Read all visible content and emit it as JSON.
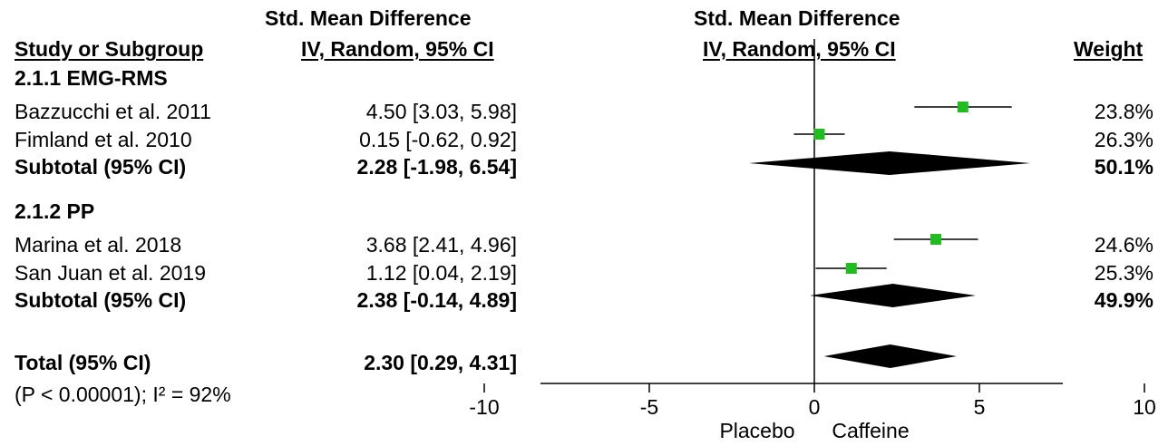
{
  "header": {
    "col_study": "Study or Subgroup",
    "col_effect_line1": "Std. Mean Difference",
    "col_effect_line2": "IV, Random, 95% CI",
    "plot_line1": "Std. Mean Difference",
    "plot_line2": "IV, Random, 95% CI",
    "col_weight": "Weight"
  },
  "subgroups": [
    {
      "title": "2.1.1 EMG-RMS",
      "studies": [
        {
          "name": "Bazzucchi et al. 2011",
          "ci_text": "4.50 [3.03, 5.98]",
          "weight": "23.8%"
        },
        {
          "name": "Fimland et al. 2010",
          "ci_text": "0.15 [-0.62, 0.92]",
          "weight": "26.3%"
        }
      ],
      "subtotal": {
        "label": "Subtotal (95% CI)",
        "ci_text": "2.28 [-1.98, 6.54]",
        "weight": "50.1%"
      }
    },
    {
      "title": "2.1.2 PP",
      "studies": [
        {
          "name": "Marina et al. 2018",
          "ci_text": "3.68 [2.41, 4.96]",
          "weight": "24.6%"
        },
        {
          "name": "San Juan et al. 2019",
          "ci_text": "1.12 [0.04, 2.19]",
          "weight": "25.3%"
        }
      ],
      "subtotal": {
        "label": "Subtotal (95% CI)",
        "ci_text": "2.38 [-0.14, 4.89]",
        "weight": "49.9%"
      }
    }
  ],
  "total": {
    "label": "Total (95% CI)",
    "ci_text": "2.30 [0.29, 4.31]",
    "heterogeneity": "(P < 0.00001); I² = 92%"
  },
  "axis": {
    "left_label": "Placebo",
    "right_label": "Caffeine"
  },
  "chart_data": {
    "type": "forest",
    "x_ticks": [
      -10,
      -5,
      0,
      5,
      10
    ],
    "xlim": [
      -10,
      10
    ],
    "marker_color": "#22bb22",
    "diamond_color": "#000000",
    "studies": [
      {
        "name": "Bazzucchi et al. 2011",
        "est": 4.5,
        "lo": 3.03,
        "hi": 5.98
      },
      {
        "name": "Fimland et al. 2010",
        "est": 0.15,
        "lo": -0.62,
        "hi": 0.92
      },
      {
        "name": "Marina et al. 2018",
        "est": 3.68,
        "lo": 2.41,
        "hi": 4.96
      },
      {
        "name": "San Juan et al. 2019",
        "est": 1.12,
        "lo": 0.04,
        "hi": 2.19
      }
    ],
    "pooled": [
      {
        "label": "Subtotal (95% CI)",
        "est": 2.28,
        "lo": -1.98,
        "hi": 6.54
      },
      {
        "label": "Subtotal (95% CI)",
        "est": 2.38,
        "lo": -0.14,
        "hi": 4.89
      },
      {
        "label": "Total (95% CI)",
        "est": 2.3,
        "lo": 0.29,
        "hi": 4.31
      }
    ]
  }
}
